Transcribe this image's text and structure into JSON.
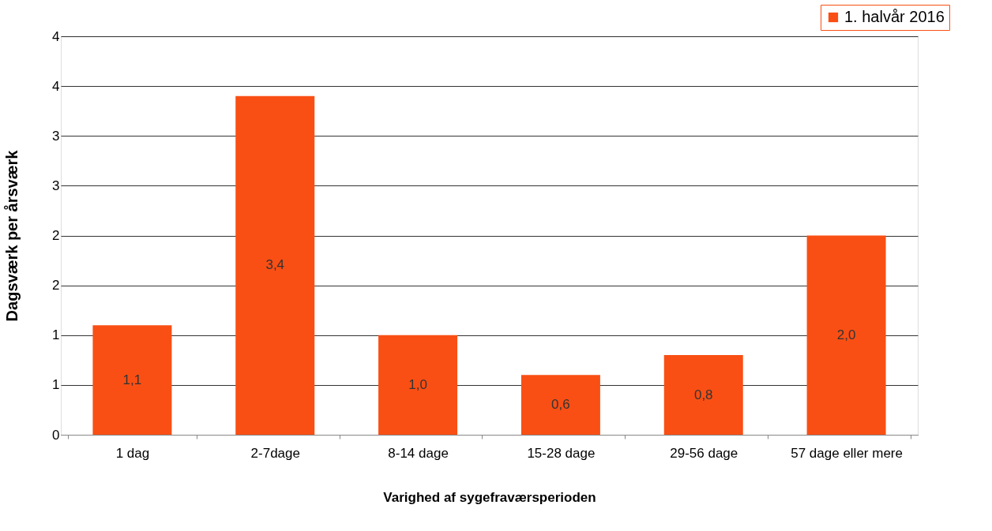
{
  "chart_data": {
    "type": "bar",
    "xlabel": "Varighed af sygefraværsperioden",
    "ylabel": "Dagsværk  per årsværk",
    "categories": [
      "1 dag",
      "2-7dage",
      "8-14 dage",
      "15-28 dage",
      "29-56 dage",
      "57 dage eller mere"
    ],
    "series": [
      {
        "name": "1. halvår 2016",
        "color": "#f94f14",
        "values": [
          1.1,
          3.4,
          1.0,
          0.6,
          0.8,
          2.0
        ]
      }
    ],
    "ylim": [
      0,
      4
    ],
    "yticks": [
      0,
      {
        "value": 0.5,
        "label": "1"
      },
      1,
      {
        "value": 1.5,
        "label": "2"
      },
      2,
      {
        "value": 2.5,
        "label": "3"
      },
      3,
      {
        "value": 3.5,
        "label": "4"
      },
      4
    ],
    "value_labels": [
      "1,1",
      "3,4",
      "1,0",
      "0,6",
      "0,8",
      "2,0"
    ],
    "grid": "y",
    "legend": "top right"
  }
}
